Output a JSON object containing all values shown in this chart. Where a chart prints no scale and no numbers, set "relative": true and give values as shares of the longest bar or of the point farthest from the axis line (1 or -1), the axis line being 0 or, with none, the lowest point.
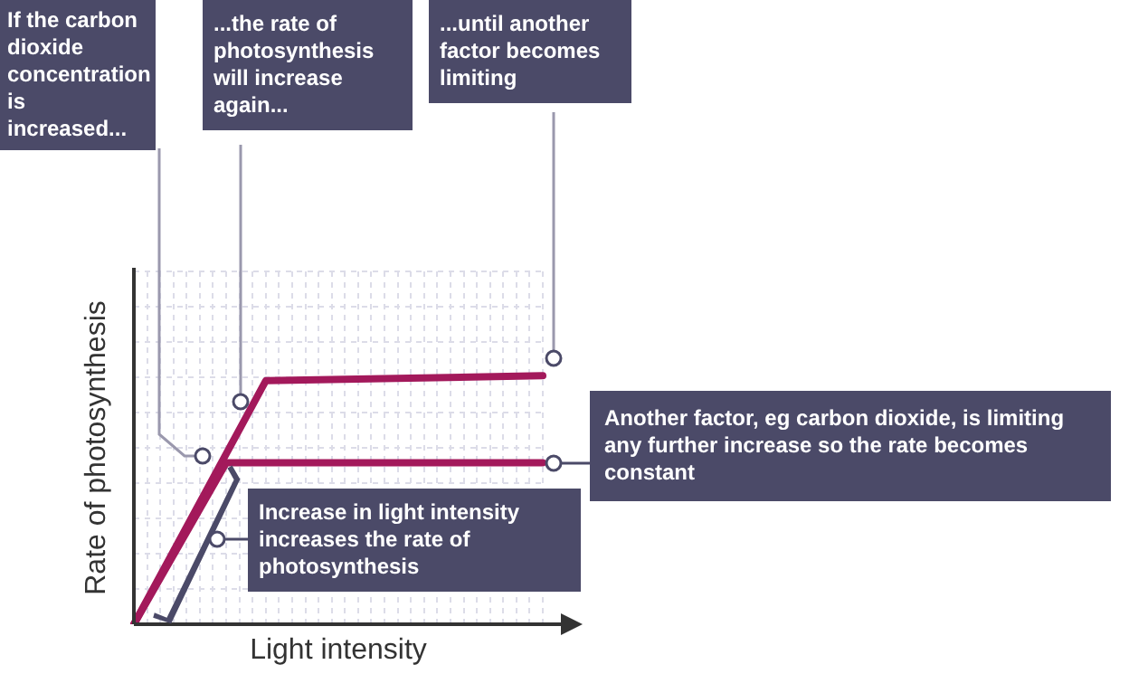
{
  "chart_data": {
    "type": "line",
    "relative": true,
    "xlabel": "Light intensity",
    "ylabel": "Rate of photosynthesis",
    "categories": [
      null,
      null,
      null,
      null,
      null,
      null,
      null,
      null,
      null,
      null,
      null,
      null,
      null,
      null,
      null,
      null,
      null,
      null,
      null,
      null,
      null,
      null,
      null,
      null,
      null,
      null,
      null,
      null,
      null,
      null,
      null,
      null
    ],
    "series": [
      {
        "color": "#a3195b",
        "values": [
          0,
          null,
          null,
          null,
          null,
          null,
          null,
          0.65,
          null,
          null,
          null,
          null,
          null,
          null,
          null,
          null,
          null,
          null,
          null,
          null,
          null,
          null,
          null,
          null,
          null,
          null,
          null,
          null,
          null,
          null,
          null,
          0.65
        ]
      },
      {
        "color": "#a3195b",
        "values": [
          0,
          null,
          null,
          null,
          null,
          null,
          null,
          null,
          null,
          null,
          0.98,
          null,
          null,
          null,
          null,
          null,
          null,
          null,
          null,
          null,
          null,
          null,
          null,
          null,
          null,
          null,
          null,
          null,
          null,
          null,
          null,
          1
        ]
      }
    ],
    "grid": true,
    "marker": "none",
    "line_style": "solid",
    "annotations": [
      "If the carbon dioxide concentration is increased...",
      "...the rate of photosynthesis will increase again...",
      "...until another factor becomes limiting",
      "Another factor, eg carbon dioxide, is limiting any further increase so the rate becomes constant",
      "Increase in light intensity increases the rate of photosynthesis"
    ]
  }
}
